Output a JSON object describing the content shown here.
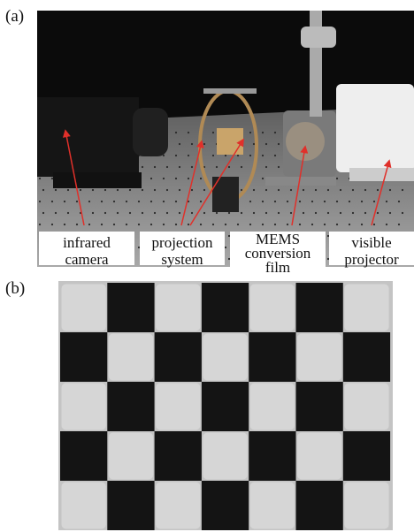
{
  "panels": [
    {
      "label": "(a)",
      "annotations": [
        {
          "lines": [
            "infrared",
            "camera"
          ]
        },
        {
          "lines": [
            "projection",
            "system"
          ]
        },
        {
          "lines": [
            "MEMS",
            "conversion",
            "film"
          ]
        },
        {
          "lines": [
            "visible",
            "projector"
          ]
        }
      ]
    },
    {
      "label": "(b)"
    }
  ]
}
